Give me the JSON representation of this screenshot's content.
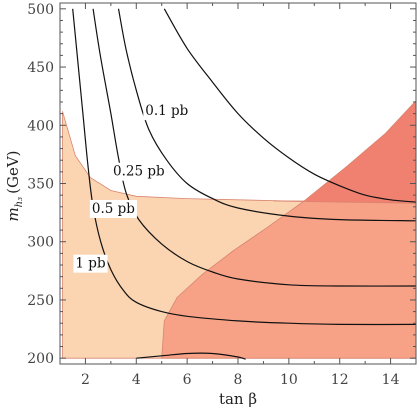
{
  "chart_data": {
    "type": "contour",
    "xlabel": "tan β",
    "ylabel": "m",
    "ylabel_subscript": "h₃",
    "ylabel_unit": "(GeV)",
    "xlim": [
      1,
      15
    ],
    "ylim": [
      195,
      505
    ],
    "x_ticks": [
      2,
      4,
      6,
      8,
      10,
      12,
      14
    ],
    "y_ticks": [
      200,
      250,
      300,
      350,
      400,
      450,
      500
    ],
    "grid": false,
    "colors": {
      "region_light": "#fbd4b2",
      "region_medium": "#f7a287",
      "region_dark": "#f08070",
      "region_edge": "#d98570",
      "contour": "#111111"
    },
    "shaded_regions": [
      {
        "id": "light",
        "boundary": [
          [
            1.1,
            200
          ],
          [
            1.1,
            412
          ],
          [
            1.6,
            374
          ],
          [
            2.2,
            355
          ],
          [
            3,
            344
          ],
          [
            4,
            339
          ],
          [
            6,
            337
          ],
          [
            8,
            336
          ],
          [
            10,
            335
          ],
          [
            12,
            334
          ],
          [
            15,
            333
          ],
          [
            15,
            200
          ]
        ]
      },
      {
        "id": "medium",
        "boundary": [
          [
            5,
            200
          ],
          [
            5.1,
            232
          ],
          [
            5.6,
            252
          ],
          [
            6.6,
            272
          ],
          [
            7.8,
            292
          ],
          [
            9.2,
            313
          ],
          [
            10.6,
            335
          ],
          [
            12.3,
            365
          ],
          [
            13.8,
            393
          ],
          [
            15,
            421
          ],
          [
            15,
            200
          ]
        ]
      },
      {
        "id": "dark",
        "boundary": [
          [
            9.4,
            335
          ],
          [
            12,
            334
          ],
          [
            15,
            333
          ],
          [
            15,
            421
          ],
          [
            13.8,
            393
          ],
          [
            12.3,
            365
          ],
          [
            10.6,
            335
          ]
        ]
      }
    ],
    "contours": [
      {
        "label": "0.1 pb",
        "label_at": [
          5.2,
          413
        ],
        "points": [
          [
            5.1,
            500
          ],
          [
            6,
            466
          ],
          [
            7,
            437
          ],
          [
            8,
            410
          ],
          [
            9,
            389
          ],
          [
            10,
            372
          ],
          [
            11,
            358
          ],
          [
            12,
            348
          ],
          [
            13,
            340
          ],
          [
            14,
            336
          ],
          [
            15,
            334
          ]
        ]
      },
      {
        "label": "0.25 pb",
        "label_at": [
          4.1,
          361
        ],
        "points": [
          [
            3.3,
            500
          ],
          [
            3.6,
            465
          ],
          [
            4,
            430
          ],
          [
            4.5,
            396
          ],
          [
            5.2,
            370
          ],
          [
            6,
            350
          ],
          [
            7,
            337
          ],
          [
            8,
            329
          ],
          [
            10,
            322
          ],
          [
            12,
            319
          ],
          [
            15,
            318
          ]
        ]
      },
      {
        "label": "0.5 pb",
        "label_at": [
          3.1,
          329
        ],
        "points": [
          [
            2.3,
            500
          ],
          [
            2.6,
            458
          ],
          [
            3,
            410
          ],
          [
            3.3,
            372
          ],
          [
            3.6,
            342
          ],
          [
            4.1,
            319
          ],
          [
            5,
            298
          ],
          [
            6,
            283
          ],
          [
            7,
            274
          ],
          [
            8,
            268
          ],
          [
            10,
            263
          ],
          [
            12,
            262
          ],
          [
            15,
            262
          ]
        ]
      },
      {
        "label": "1 pb",
        "label_at": [
          2.2,
          282
        ],
        "points": [
          [
            1.5,
            500
          ],
          [
            1.7,
            455
          ],
          [
            1.9,
            410
          ],
          [
            2.1,
            365
          ],
          [
            2.3,
            330
          ],
          [
            2.6,
            300
          ],
          [
            3,
            276
          ],
          [
            3.5,
            258
          ],
          [
            4,
            248
          ],
          [
            5,
            240
          ],
          [
            6,
            236
          ],
          [
            8,
            232
          ],
          [
            10,
            230
          ],
          [
            12,
            229
          ],
          [
            15,
            229
          ]
        ]
      },
      {
        "label": "",
        "label_at": null,
        "points": [
          [
            4,
            200
          ],
          [
            5,
            202
          ],
          [
            6,
            204
          ],
          [
            7,
            204
          ],
          [
            8,
            201
          ],
          [
            8.3,
            199
          ]
        ]
      }
    ]
  }
}
